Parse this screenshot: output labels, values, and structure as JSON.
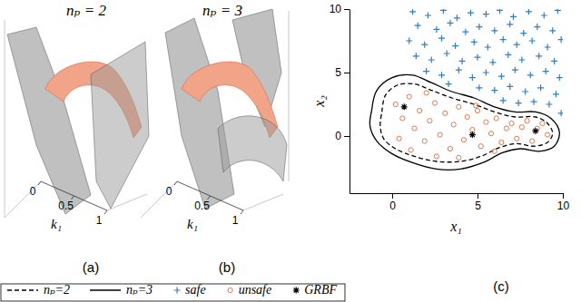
{
  "chart_data": [
    {
      "type": "surface3d",
      "title": "nₚ = 2",
      "xlabel": "k₁",
      "xlim": [
        0,
        1
      ],
      "xticks": [
        0,
        0.5,
        1
      ],
      "annotations": [
        "(a)"
      ]
    },
    {
      "type": "surface3d",
      "title": "nₚ = 3",
      "xlabel": "k₁",
      "xlim": [
        0,
        1
      ],
      "xticks": [
        0,
        0.5,
        1
      ],
      "annotations": [
        "(b)"
      ]
    },
    {
      "type": "scatter",
      "xlabel": "x₁",
      "ylabel": "x₂",
      "xlim": [
        -2.5,
        10
      ],
      "ylim": [
        -4.5,
        10
      ],
      "xticks": [
        0,
        5,
        10
      ],
      "yticks": [
        0,
        5,
        10
      ],
      "legend": "bottom",
      "annotations": [
        "(c)"
      ],
      "series": [
        {
          "name": "nₚ=2",
          "type": "line",
          "line_style": "dashed",
          "color": "#000000",
          "x": [
            -0.6,
            -0.4,
            0.3,
            1.3,
            2.3,
            3.5,
            4.8,
            6.0,
            7.2,
            8.4,
            9.1,
            9.4,
            9.1,
            8.3,
            7.3,
            6.3,
            5.2,
            4.0,
            2.6,
            1.3,
            0.2,
            -0.5,
            -0.7,
            -0.6
          ],
          "values": [
            1.9,
            3.2,
            4.0,
            4.1,
            3.6,
            3.0,
            2.5,
            1.9,
            1.5,
            1.5,
            1.0,
            0.2,
            -0.5,
            -0.8,
            -0.6,
            -0.9,
            -1.6,
            -2.0,
            -2.0,
            -1.6,
            -1.0,
            -0.2,
            0.8,
            1.9
          ]
        },
        {
          "name": "nₚ=3",
          "type": "line",
          "line_style": "solid",
          "color": "#000000",
          "x": [
            -1.2,
            -0.9,
            0,
            1.2,
            2.3,
            3.5,
            4.8,
            6.0,
            7.2,
            8.4,
            9.3,
            9.8,
            9.5,
            8.6,
            7.5,
            6.5,
            5.3,
            4.0,
            2.6,
            1.2,
            0,
            -0.9,
            -1.3,
            -1.2
          ],
          "values": [
            2.0,
            3.6,
            4.6,
            4.8,
            4.2,
            3.5,
            3.0,
            2.3,
            1.9,
            1.9,
            1.4,
            0.3,
            -0.8,
            -1.2,
            -1.0,
            -1.3,
            -2.1,
            -2.6,
            -2.6,
            -2.1,
            -1.4,
            -0.4,
            0.8,
            2.0
          ]
        },
        {
          "name": "safe",
          "type": "scatter",
          "marker": "plus",
          "color": "#2f7fc4",
          "x": [
            1.2,
            2.1,
            3.0,
            3.8,
            4.6,
            5.5,
            6.3,
            7.1,
            8.0,
            8.9,
            9.7,
            1.5,
            2.6,
            3.4,
            4.3,
            5.1,
            6.0,
            6.9,
            7.7,
            8.5,
            9.4,
            1.0,
            1.9,
            2.9,
            3.7,
            4.8,
            5.6,
            6.5,
            7.3,
            8.2,
            9.1,
            9.9,
            1.4,
            2.3,
            3.2,
            4.1,
            5.0,
            5.9,
            6.8,
            7.6,
            8.6,
            9.5,
            2.0,
            2.9,
            3.9,
            4.7,
            5.5,
            6.4,
            7.2,
            8.1,
            9.0,
            9.8,
            3.3,
            5.1,
            6.0,
            6.9,
            7.8,
            8.7,
            9.6,
            6.5,
            7.4,
            8.3,
            9.2,
            9.9
          ],
          "values": [
            9.8,
            9.5,
            9.9,
            9.3,
            9.7,
            9.6,
            9.9,
            9.4,
            9.8,
            9.5,
            9.9,
            8.7,
            8.4,
            8.9,
            8.2,
            8.6,
            8.3,
            8.8,
            8.1,
            8.6,
            8.3,
            7.5,
            7.2,
            7.7,
            7.1,
            7.4,
            7.0,
            7.6,
            7.2,
            7.5,
            7.0,
            7.6,
            6.3,
            6.0,
            6.5,
            5.9,
            6.2,
            5.8,
            6.4,
            6.0,
            6.3,
            5.9,
            5.1,
            4.8,
            5.2,
            4.6,
            5.0,
            4.7,
            5.2,
            4.8,
            5.1,
            4.6,
            4.1,
            3.8,
            3.6,
            3.9,
            3.5,
            3.8,
            3.3,
            2.8,
            2.6,
            2.7,
            2.5,
            1.8
          ]
        },
        {
          "name": "unsafe",
          "type": "scatter",
          "marker": "circle",
          "color": "#e07a50",
          "x": [
            0.2,
            0.6,
            1.0,
            1.3,
            1.6,
            1.9,
            2.2,
            2.5,
            2.8,
            3.1,
            3.4,
            3.6,
            3.9,
            4.2,
            4.4,
            4.7,
            5.0,
            5.2,
            5.5,
            5.8,
            6.1,
            6.4,
            6.7,
            7.0,
            7.3,
            7.6,
            7.9,
            8.2,
            8.5,
            8.8,
            9.1,
            0.4,
            1.1,
            2.6,
            3.9,
            4.9,
            2.0,
            6.0
          ],
          "values": [
            2.5,
            1.4,
            3.1,
            0.6,
            2.0,
            -0.4,
            1.2,
            2.6,
            0.1,
            1.8,
            -1.0,
            0.9,
            2.3,
            -0.3,
            1.5,
            0.5,
            2.0,
            -0.8,
            1.1,
            0.2,
            1.4,
            -0.5,
            0.6,
            1.0,
            -0.2,
            0.7,
            1.2,
            -0.4,
            0.6,
            1.0,
            0.1,
            -0.2,
            -1.1,
            -1.6,
            -1.7,
            2.4,
            3.4,
            -1.2
          ]
        },
        {
          "name": "GRBF",
          "type": "scatter",
          "marker": "asterisk",
          "color": "#000000",
          "x": [
            0.7,
            4.7,
            8.4
          ],
          "values": [
            2.3,
            0.1,
            0.4
          ]
        }
      ]
    }
  ]
}
